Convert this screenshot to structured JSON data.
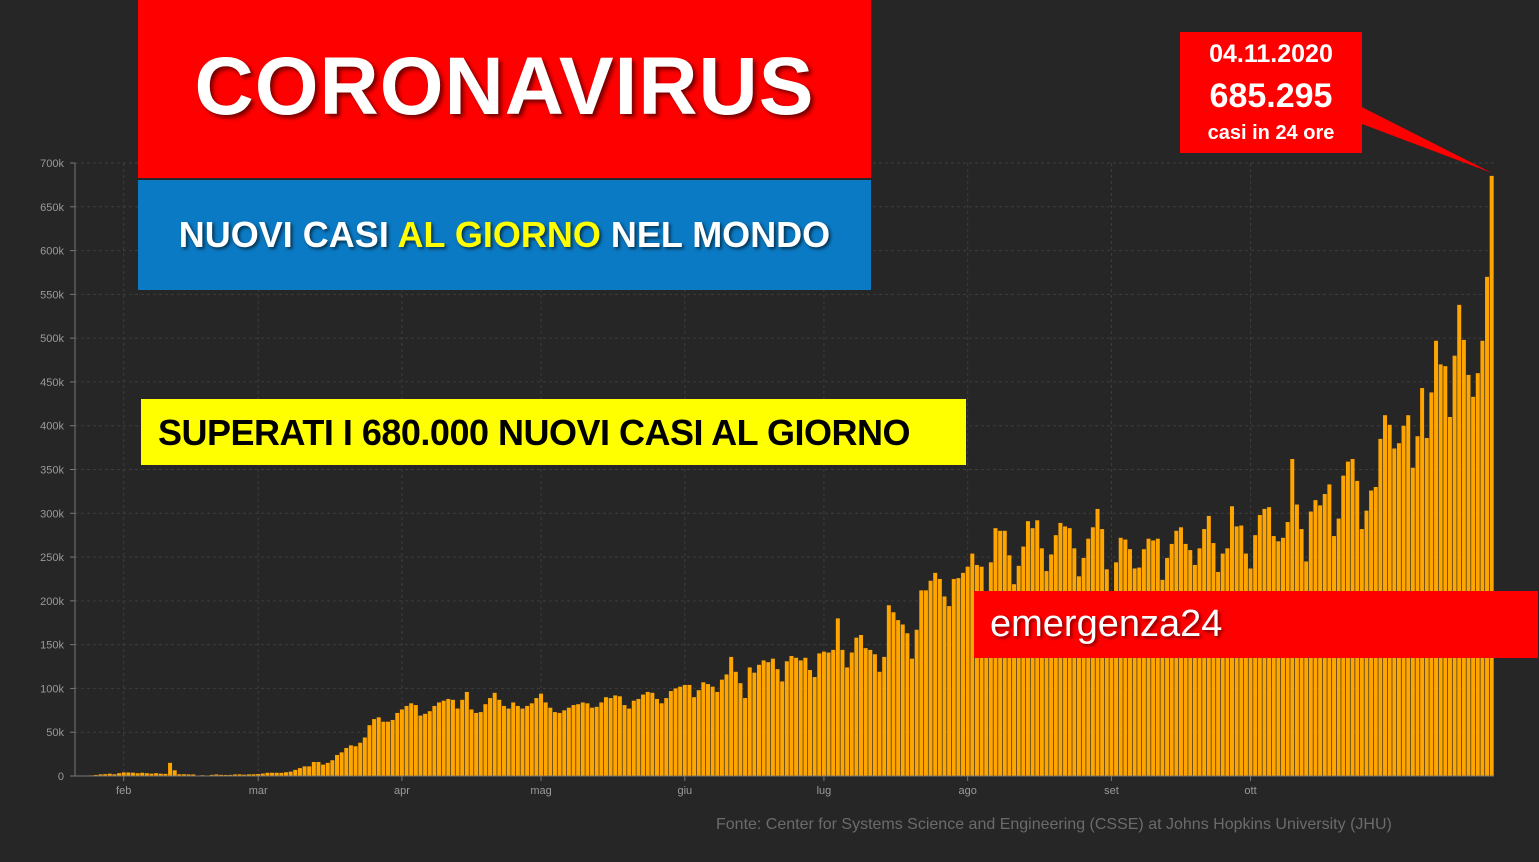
{
  "title": "CORONAVIRUS",
  "subtitle": {
    "part1": "NUOVI CASI ",
    "highlight": "AL GIORNO",
    "part2": " NEL MONDO"
  },
  "headline": "SUPERATI I 680.000 NUOVI CASI AL GIORNO",
  "callout": {
    "date": "04.11.2020",
    "value": "685.295",
    "caption": "casi in 24 ore"
  },
  "brand": "emergenza24",
  "source": "Fonte: Center for Systems Science and Engineering (CSSE) at Johns Hopkins University (JHU)",
  "colors": {
    "background": "#262626",
    "bar": "#ffa500",
    "title_bg": "#ff0000",
    "subtitle_bg": "#0b7ac4",
    "highlight": "#ffff00",
    "headline_bg": "#ffff00"
  },
  "chart_data": {
    "type": "bar",
    "x_start": "2020-01-22",
    "x_end": "2020-11-04",
    "x_ticks": [
      "feb",
      "mar",
      "apr",
      "mag",
      "giu",
      "lug",
      "ago",
      "set",
      "ott"
    ],
    "y_ticks": [
      "0",
      "50k",
      "100k",
      "150k",
      "200k",
      "250k",
      "300k",
      "350k",
      "400k",
      "450k",
      "500k",
      "550k",
      "600k",
      "650k",
      "700k"
    ],
    "ylim": [
      0,
      700000
    ],
    "grid": true,
    "values": [
      100,
      300,
      600,
      700,
      1200,
      1900,
      2100,
      2600,
      2000,
      3200,
      4100,
      4000,
      3800,
      3200,
      3700,
      3200,
      2700,
      3200,
      2600,
      2400,
      15000,
      6500,
      2000,
      2000,
      1800,
      1800,
      500,
      900,
      600,
      1300,
      1800,
      1300,
      1200,
      1300,
      1800,
      1900,
      1500,
      1900,
      2000,
      2300,
      2800,
      3700,
      3700,
      3700,
      3600,
      4300,
      5000,
      7000,
      9000,
      11000,
      11000,
      16000,
      16000,
      13000,
      15000,
      18000,
      24000,
      27000,
      32000,
      35000,
      34000,
      38000,
      44000,
      58000,
      65000,
      67000,
      62000,
      62000,
      64000,
      72000,
      76000,
      80000,
      83000,
      81000,
      69000,
      71000,
      74000,
      80000,
      84000,
      86000,
      88000,
      87000,
      77000,
      87000,
      96000,
      76000,
      72000,
      73000,
      82000,
      89000,
      95000,
      87000,
      80000,
      77000,
      84000,
      80000,
      77000,
      80000,
      83000,
      89000,
      94000,
      84000,
      78000,
      73000,
      72000,
      75000,
      78000,
      81000,
      82000,
      84000,
      83000,
      78000,
      79000,
      84000,
      90000,
      89000,
      92000,
      91000,
      81000,
      77000,
      86000,
      88000,
      93000,
      96000,
      95000,
      88000,
      83000,
      89000,
      97000,
      100000,
      102000,
      104000,
      104000,
      90000,
      98000,
      107000,
      105000,
      102000,
      96000,
      110000,
      116000,
      136000,
      119000,
      106000,
      89000,
      124000,
      118000,
      127000,
      132000,
      130000,
      134000,
      122000,
      108000,
      131000,
      137000,
      135000,
      132000,
      135000,
      121000,
      113000,
      140000,
      142000,
      141000,
      144000,
      180000,
      144000,
      124000,
      141000,
      158000,
      161000,
      146000,
      144000,
      139000,
      119000,
      136000,
      195000,
      187000,
      178000,
      173000,
      163000,
      134000,
      167000,
      212000,
      212000,
      223000,
      232000,
      225000,
      205000,
      194000,
      225000,
      226000,
      232000,
      239000,
      254000,
      241000,
      239000,
      208000,
      244000,
      283000,
      280000,
      280000,
      252000,
      219000,
      240000,
      262000,
      291000,
      283000,
      292000,
      260000,
      234000,
      253000,
      275000,
      289000,
      285000,
      283000,
      260000,
      228000,
      249000,
      271000,
      284000,
      305000,
      282000,
      236000,
      211000,
      244000,
      272000,
      270000,
      259000,
      237000,
      238000,
      259000,
      271000,
      269000,
      271000,
      224000,
      249000,
      265000,
      280000,
      284000,
      265000,
      258000,
      241000,
      260000,
      282000,
      297000,
      266000,
      233000,
      254000,
      260000,
      308000,
      285000,
      286000,
      254000,
      237000,
      275000,
      298000,
      305000,
      307000,
      274000,
      268000,
      272000,
      290000,
      362000,
      310000,
      282000,
      245000,
      302000,
      315000,
      309000,
      322000,
      333000,
      274000,
      294000,
      343000,
      359000,
      362000,
      337000,
      282000,
      303000,
      326000,
      330000,
      385000,
      412000,
      401000,
      374000,
      380000,
      400000,
      412000,
      352000,
      388000,
      443000,
      386000,
      438000,
      497000,
      470000,
      468000,
      410000,
      480000,
      538000,
      498000,
      458000,
      433000,
      460000,
      497000,
      570000,
      685295
    ]
  }
}
